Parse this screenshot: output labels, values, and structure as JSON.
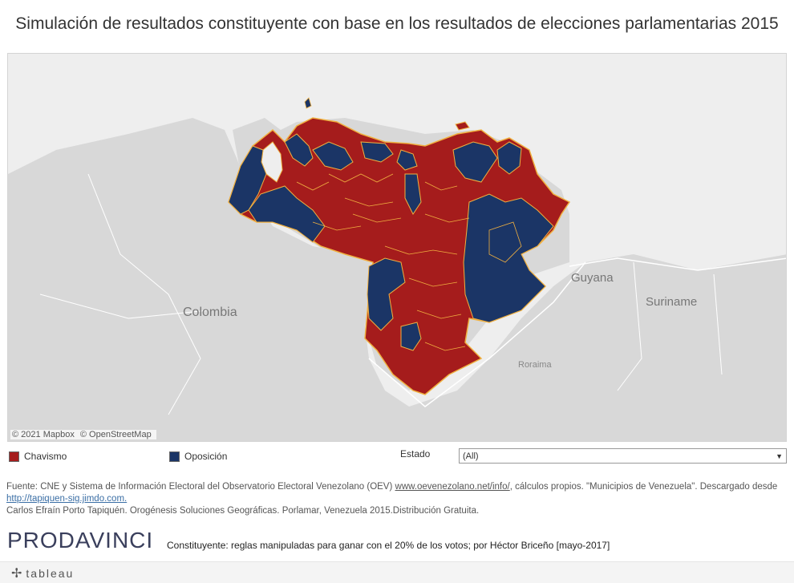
{
  "title": "Simulación de resultados constituyente con base en los resultados de elecciones parlamentarias 2015",
  "map": {
    "labels": {
      "colombia": "Colombia",
      "guyana": "Guyana",
      "suriname": "Suriname",
      "roraima": "Roraima"
    },
    "attribution": {
      "mapbox": "© 2021 Mapbox",
      "osm": "© OpenStreetMap"
    },
    "colors": {
      "chavismo": "#a51c1c",
      "oposicion": "#1b3566",
      "border": "#f0b040",
      "land": "#d8d8d8",
      "sea": "#eeeeee"
    }
  },
  "legend": {
    "chavismo": "Chavismo",
    "oposicion": "Oposición"
  },
  "filter": {
    "label": "Estado",
    "value": "(All)"
  },
  "source": {
    "text1": "Fuente: CNE y Sistema de Información Electoral del Observatorio Electoral Venezolano (OEV) ",
    "link1": "www.oevenezolano.net/info/",
    "text2": ", cálculos propios. \"Municipios de Venezuela\". Descargado desde ",
    "link2": "http://tapiquen-sig.jimdo.com.",
    "text3": "Carlos Efraín Porto Tapiquén. Orogénesis Soluciones Geográficas. Porlamar, Venezuela 2015.Distribución Gratuita."
  },
  "logo": "PRODAVINCI",
  "credit": "Constituyente: reglas manipuladas para ganar con el 20% de los votos; por Héctor Briceño [mayo-2017]",
  "footer": {
    "brand": "tableau"
  }
}
